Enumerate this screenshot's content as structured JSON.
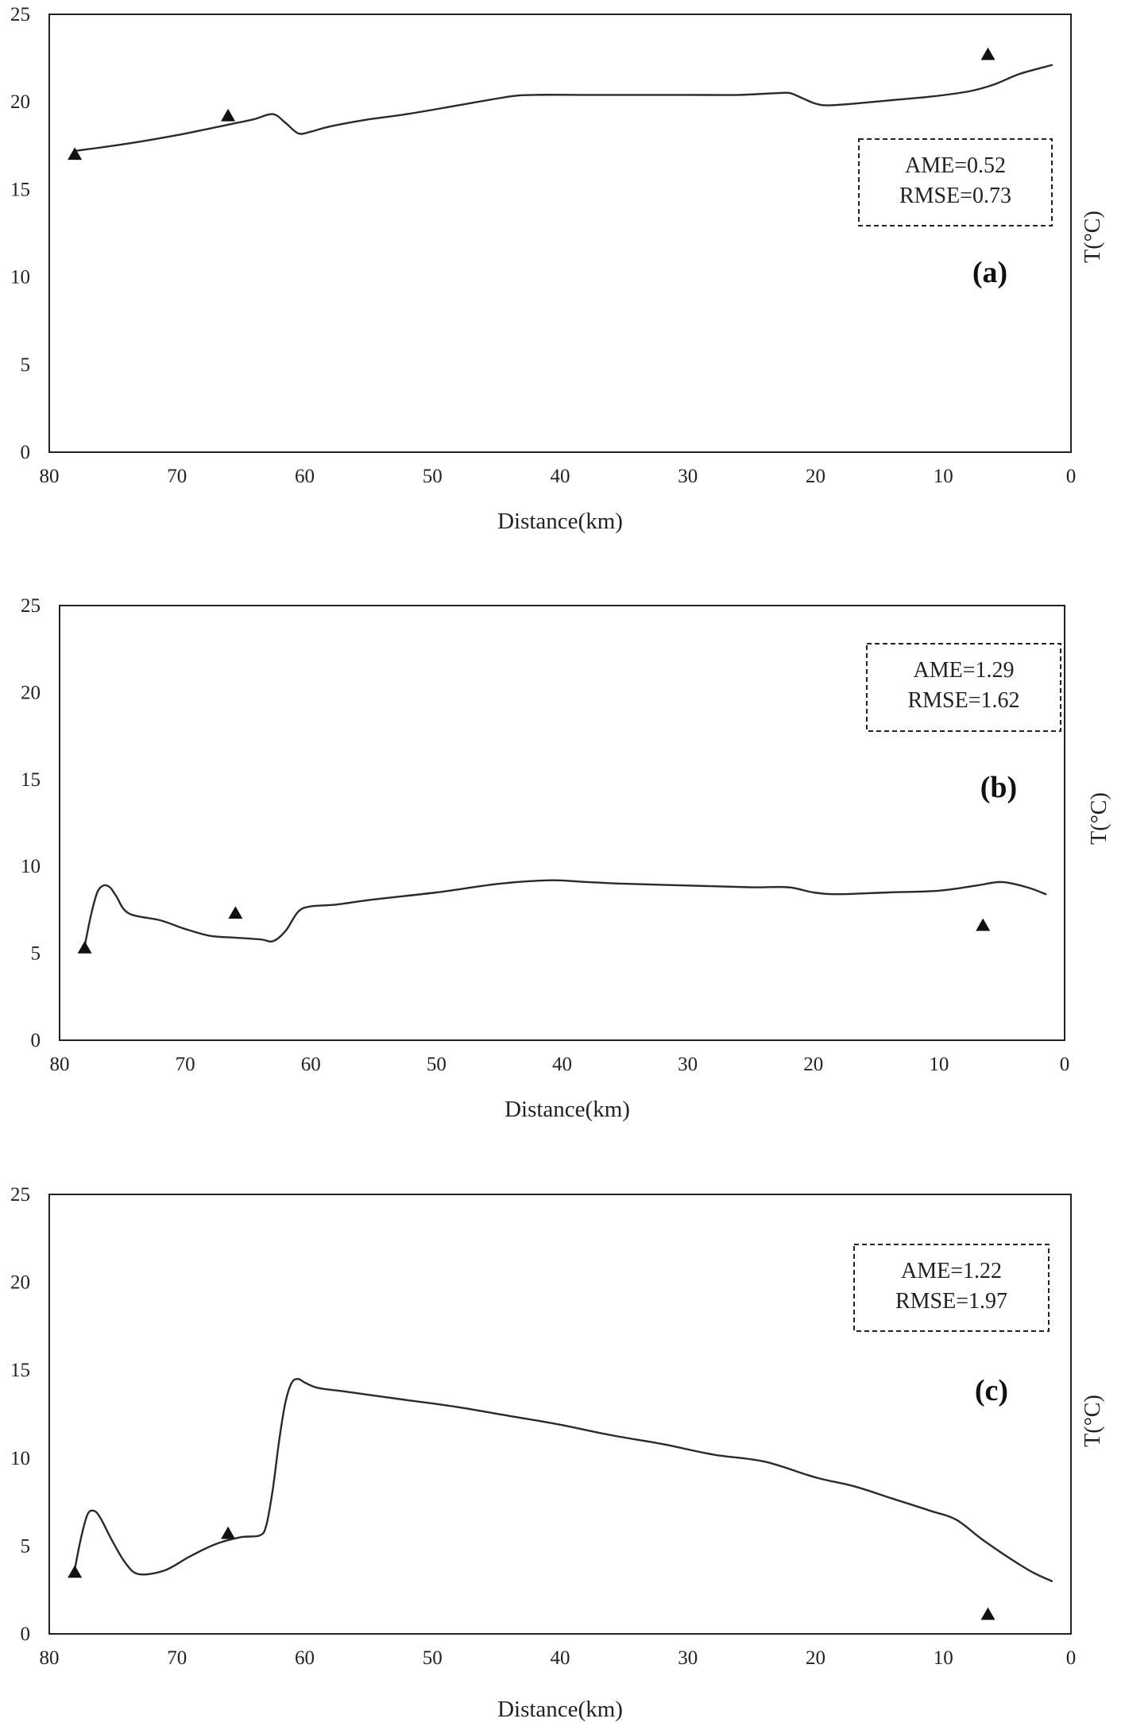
{
  "chart_data": [
    {
      "type": "line",
      "panel_label": "(a)",
      "xlabel": "Distance(km)",
      "ylabel": "T(°C)",
      "xlim": [
        80,
        0
      ],
      "ylim": [
        0,
        25
      ],
      "x_ticks": [
        "80",
        "70",
        "60",
        "50",
        "40",
        "30",
        "20",
        "10",
        "0"
      ],
      "y_ticks": [
        "0",
        "5",
        "10",
        "15",
        "20",
        "25"
      ],
      "grid": false,
      "stats": [
        "AME=0.52",
        "RMSE=0.73"
      ],
      "series": [
        {
          "style": "line",
          "x": [
            78,
            74,
            70,
            66,
            64,
            62.5,
            61.5,
            60.5,
            59.5,
            58,
            55,
            52,
            48,
            44,
            42,
            38,
            34,
            30,
            26,
            23,
            22,
            21,
            20,
            19,
            17,
            14,
            11,
            8,
            6,
            4,
            1.5
          ],
          "y": [
            17.2,
            17.6,
            18.1,
            18.7,
            19.0,
            19.3,
            18.8,
            18.2,
            18.3,
            18.6,
            19.0,
            19.3,
            19.8,
            20.3,
            20.4,
            20.4,
            20.4,
            20.4,
            20.4,
            20.5,
            20.5,
            20.2,
            19.9,
            19.8,
            19.9,
            20.1,
            20.3,
            20.6,
            21.0,
            21.6,
            22.1
          ]
        },
        {
          "style": "marker",
          "marker": "triangle",
          "x": [
            78,
            66,
            6.5
          ],
          "y": [
            17.0,
            19.2,
            22.7
          ]
        }
      ]
    },
    {
      "type": "line",
      "panel_label": "(b)",
      "xlabel": "Distance(km)",
      "ylabel": "T(°C)",
      "xlim": [
        80,
        0
      ],
      "ylim": [
        0,
        25
      ],
      "x_ticks": [
        "80",
        "70",
        "60",
        "50",
        "40",
        "30",
        "20",
        "10",
        "0"
      ],
      "y_ticks": [
        "0",
        "5",
        "10",
        "15",
        "20",
        "25"
      ],
      "grid": false,
      "stats": [
        "AME=1.29",
        "RMSE=1.62"
      ],
      "series": [
        {
          "style": "line",
          "x": [
            78,
            77.5,
            77,
            76.5,
            76,
            75.5,
            74.5,
            72,
            70,
            68,
            66,
            64,
            63,
            62,
            61,
            60,
            58,
            55,
            50,
            45,
            41,
            38,
            35,
            30,
            25,
            22,
            20,
            18,
            14,
            10,
            7,
            5,
            3,
            1.5
          ],
          "y": [
            5.4,
            7.2,
            8.5,
            8.9,
            8.8,
            8.3,
            7.3,
            6.9,
            6.4,
            6.0,
            5.9,
            5.8,
            5.7,
            6.3,
            7.4,
            7.7,
            7.8,
            8.1,
            8.5,
            9.0,
            9.2,
            9.1,
            9.0,
            8.9,
            8.8,
            8.8,
            8.5,
            8.4,
            8.5,
            8.6,
            8.9,
            9.1,
            8.8,
            8.4
          ]
        },
        {
          "style": "marker",
          "marker": "triangle",
          "x": [
            78,
            66,
            6.5
          ],
          "y": [
            5.3,
            7.3,
            6.6
          ]
        }
      ]
    },
    {
      "type": "line",
      "panel_label": "(c)",
      "xlabel": "Distance(km)",
      "ylabel": "T(°C)",
      "xlim": [
        80,
        0
      ],
      "ylim": [
        0,
        25
      ],
      "x_ticks": [
        "80",
        "70",
        "60",
        "50",
        "40",
        "30",
        "20",
        "10",
        "0"
      ],
      "y_ticks": [
        "0",
        "5",
        "10",
        "15",
        "20",
        "25"
      ],
      "grid": false,
      "stats": [
        "AME=1.22",
        "RMSE=1.97"
      ],
      "series": [
        {
          "style": "line",
          "x": [
            78,
            77.5,
            77,
            76.5,
            76,
            75,
            74,
            73,
            71,
            69,
            67,
            65,
            63.5,
            63,
            62.5,
            62,
            61.5,
            61,
            60.5,
            60,
            59,
            57,
            55,
            52,
            48,
            44,
            40,
            36,
            32,
            28,
            24,
            20,
            17,
            14,
            11,
            9,
            7,
            5,
            3,
            1.5
          ],
          "y": [
            3.7,
            5.5,
            6.8,
            7.0,
            6.6,
            5.2,
            4.0,
            3.4,
            3.6,
            4.4,
            5.1,
            5.5,
            5.6,
            6.2,
            8.2,
            11.0,
            13.2,
            14.3,
            14.5,
            14.3,
            14.0,
            13.8,
            13.6,
            13.3,
            12.9,
            12.4,
            11.9,
            11.3,
            10.8,
            10.2,
            9.8,
            8.9,
            8.4,
            7.7,
            7.0,
            6.5,
            5.4,
            4.4,
            3.5,
            3.0
          ]
        },
        {
          "style": "marker",
          "marker": "triangle",
          "x": [
            78,
            66,
            6.5
          ],
          "y": [
            3.5,
            5.7,
            1.1
          ]
        }
      ]
    }
  ]
}
